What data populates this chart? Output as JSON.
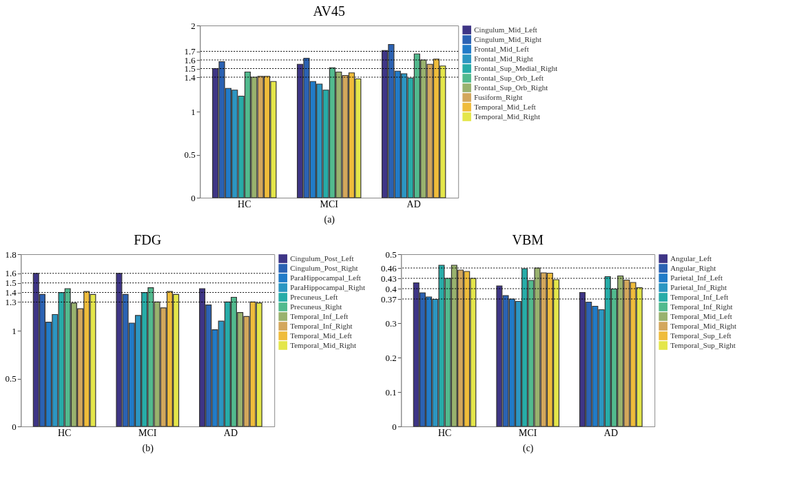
{
  "chart_data": [
    {
      "type": "bar",
      "title": "AV45",
      "categories": [
        "HC",
        "MCI",
        "AD"
      ],
      "legend": "right",
      "ylim": [
        0,
        2
      ],
      "yticks": [
        0,
        0.5,
        1,
        1.4,
        1.5,
        1.6,
        1.7,
        2
      ],
      "annotations": [
        "(a)"
      ],
      "ref_lines": [
        {
          "axis": "y",
          "value": 1.4
        },
        {
          "axis": "y",
          "value": 1.5
        },
        {
          "axis": "y",
          "value": 1.6
        },
        {
          "axis": "y",
          "value": 1.7
        }
      ],
      "series": [
        {
          "name": "Cingulum_Mid_Left",
          "color": "#3e3586",
          "values": [
            1.5,
            1.55,
            1.71
          ]
        },
        {
          "name": "Cingulum_Mid_Right",
          "color": "#2b62b3",
          "values": [
            1.58,
            1.62,
            1.78
          ]
        },
        {
          "name": "Frontal_Mid_Left",
          "color": "#217bc8",
          "values": [
            1.27,
            1.35,
            1.47
          ]
        },
        {
          "name": "Frontal_Mid_Right",
          "color": "#2c96c2",
          "values": [
            1.25,
            1.32,
            1.44
          ]
        },
        {
          "name": "Frontal_Sup_Medial_Right",
          "color": "#27aca8",
          "values": [
            1.18,
            1.25,
            1.39
          ]
        },
        {
          "name": "Frontal_Sup_Orb_Left",
          "color": "#52ba8e",
          "values": [
            1.46,
            1.51,
            1.67
          ]
        },
        {
          "name": "Frontal_Sup_Orb_Right",
          "color": "#99b26e",
          "values": [
            1.4,
            1.46,
            1.6
          ]
        },
        {
          "name": "Fusiform_Right",
          "color": "#d3a75c",
          "values": [
            1.41,
            1.42,
            1.55
          ]
        },
        {
          "name": "Temporal_Mid_Left",
          "color": "#efbc3b",
          "values": [
            1.41,
            1.45,
            1.61
          ]
        },
        {
          "name": "Temporal_Mid_Right",
          "color": "#e4e64a",
          "values": [
            1.35,
            1.38,
            1.53
          ]
        }
      ]
    },
    {
      "type": "bar",
      "title": "FDG",
      "categories": [
        "HC",
        "MCI",
        "AD"
      ],
      "legend": "right",
      "ylim": [
        0,
        1.8
      ],
      "yticks": [
        0,
        0.5,
        1,
        1.3,
        1.4,
        1.5,
        1.6,
        1.8
      ],
      "annotations": [
        "(b)"
      ],
      "ref_lines": [
        {
          "axis": "y",
          "value": 1.3
        },
        {
          "axis": "y",
          "value": 1.4
        },
        {
          "axis": "y",
          "value": 1.5
        },
        {
          "axis": "y",
          "value": 1.6
        }
      ],
      "series": [
        {
          "name": "Cingulum_Post_Left",
          "color": "#3e3586",
          "values": [
            1.6,
            1.6,
            1.44
          ]
        },
        {
          "name": "Cingulum_Post_Right",
          "color": "#2b62b3",
          "values": [
            1.38,
            1.38,
            1.27
          ]
        },
        {
          "name": "ParaHippocampal_Left",
          "color": "#217bc8",
          "values": [
            1.09,
            1.08,
            1.01
          ]
        },
        {
          "name": "ParaHippocampal_Right",
          "color": "#2c96c2",
          "values": [
            1.17,
            1.16,
            1.1
          ]
        },
        {
          "name": "Precuneus_Left",
          "color": "#27aca8",
          "values": [
            1.4,
            1.4,
            1.3
          ]
        },
        {
          "name": "Precuneus_Right",
          "color": "#52ba8e",
          "values": [
            1.44,
            1.45,
            1.35
          ]
        },
        {
          "name": "Temporal_Inf_Left",
          "color": "#99b26e",
          "values": [
            1.29,
            1.3,
            1.19
          ]
        },
        {
          "name": "Temporal_Inf_Right",
          "color": "#d3a75c",
          "values": [
            1.23,
            1.24,
            1.15
          ]
        },
        {
          "name": "Temporal_Mid_Left",
          "color": "#efbc3b",
          "values": [
            1.41,
            1.41,
            1.3
          ]
        },
        {
          "name": "Temporal_Mid_Right",
          "color": "#e4e64a",
          "values": [
            1.38,
            1.38,
            1.29
          ]
        }
      ]
    },
    {
      "type": "bar",
      "title": "VBM",
      "categories": [
        "HC",
        "MCI",
        "AD"
      ],
      "legend": "right",
      "ylim": [
        0,
        0.5
      ],
      "yticks": [
        0,
        0.1,
        0.2,
        0.3,
        0.37,
        0.4,
        0.43,
        0.46,
        0.5
      ],
      "annotations": [
        "(c)"
      ],
      "ref_lines": [
        {
          "axis": "y",
          "value": 0.37
        },
        {
          "axis": "y",
          "value": 0.4
        },
        {
          "axis": "y",
          "value": 0.43
        },
        {
          "axis": "y",
          "value": 0.46
        }
      ],
      "series": [
        {
          "name": "Angular_Left",
          "color": "#3e3586",
          "values": [
            0.417,
            0.408,
            0.389
          ]
        },
        {
          "name": "Angular_Right",
          "color": "#2b62b3",
          "values": [
            0.388,
            0.38,
            0.361
          ]
        },
        {
          "name": "Parietal_Inf_Left",
          "color": "#217bc8",
          "values": [
            0.376,
            0.37,
            0.349
          ]
        },
        {
          "name": "Parietal_Inf_Right",
          "color": "#2c96c2",
          "values": [
            0.369,
            0.363,
            0.339
          ]
        },
        {
          "name": "Temporal_Inf_Left",
          "color": "#27aca8",
          "values": [
            0.468,
            0.458,
            0.435
          ]
        },
        {
          "name": "Temporal_Inf_Right",
          "color": "#52ba8e",
          "values": [
            0.43,
            0.424,
            0.399
          ]
        },
        {
          "name": "Temporal_Mid_Left",
          "color": "#99b26e",
          "values": [
            0.468,
            0.46,
            0.437
          ]
        },
        {
          "name": "Temporal_Mid_Right",
          "color": "#d3a75c",
          "values": [
            0.454,
            0.446,
            0.425
          ]
        },
        {
          "name": "Temporal_Sup_Left",
          "color": "#efbc3b",
          "values": [
            0.45,
            0.445,
            0.418
          ]
        },
        {
          "name": "Temporal_Sup_Right",
          "color": "#e4e64a",
          "values": [
            0.43,
            0.426,
            0.403
          ]
        }
      ]
    }
  ]
}
